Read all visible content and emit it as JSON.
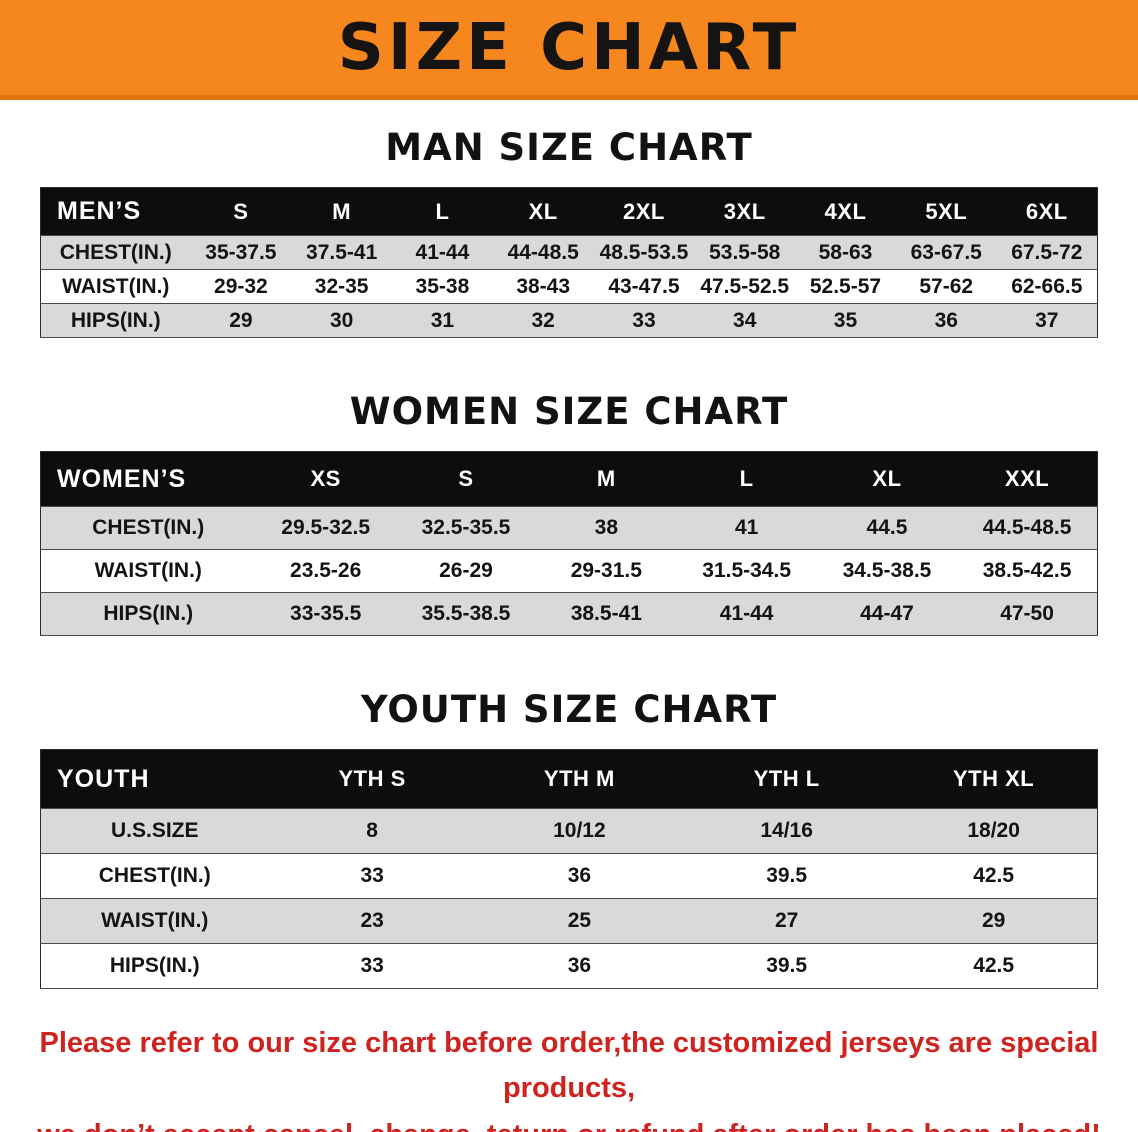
{
  "banner": {
    "title": "SIZE CHART",
    "bg_color": "#F6871F"
  },
  "tables": [
    {
      "id": "men",
      "heading": "MAN SIZE CHART",
      "header": [
        "MEN’S",
        "S",
        "M",
        "L",
        "XL",
        "2XL",
        "3XL",
        "4XL",
        "5XL",
        "6XL"
      ],
      "rows": [
        [
          "CHEST(IN.)",
          "35-37.5",
          "37.5-41",
          "41-44",
          "44-48.5",
          "48.5-53.5",
          "53.5-58",
          "58-63",
          "63-67.5",
          "67.5-72"
        ],
        [
          "WAIST(IN.)",
          "29-32",
          "32-35",
          "35-38",
          "38-43",
          "43-47.5",
          "47.5-52.5",
          "52.5-57",
          "57-62",
          "62-66.5"
        ],
        [
          "HIPS(IN.)",
          "29",
          "30",
          "31",
          "32",
          "33",
          "34",
          "35",
          "36",
          "37"
        ]
      ]
    },
    {
      "id": "women",
      "heading": "WOMEN SIZE CHART",
      "header": [
        "WOMEN’S",
        "XS",
        "S",
        "M",
        "L",
        "XL",
        "XXL"
      ],
      "rows": [
        [
          "CHEST(IN.)",
          "29.5-32.5",
          "32.5-35.5",
          "38",
          "41",
          "44.5",
          "44.5-48.5"
        ],
        [
          "WAIST(IN.)",
          "23.5-26",
          "26-29",
          "29-31.5",
          "31.5-34.5",
          "34.5-38.5",
          "38.5-42.5"
        ],
        [
          "HIPS(IN.)",
          "33-35.5",
          "35.5-38.5",
          "38.5-41",
          "41-44",
          "44-47",
          "47-50"
        ]
      ]
    },
    {
      "id": "youth",
      "heading": "YOUTH SIZE CHART",
      "header": [
        "YOUTH",
        "YTH S",
        "YTH M",
        "YTH L",
        "YTH XL"
      ],
      "rows": [
        [
          "U.S.SIZE",
          "8",
          "10/12",
          "14/16",
          "18/20"
        ],
        [
          "CHEST(IN.)",
          "33",
          "36",
          "39.5",
          "42.5"
        ],
        [
          "WAIST(IN.)",
          "23",
          "25",
          "27",
          "29"
        ],
        [
          "HIPS(IN.)",
          "33",
          "36",
          "39.5",
          "42.5"
        ]
      ]
    }
  ],
  "notice": {
    "color": "#CE2420",
    "line1": "Please refer to our size chart before order,the customized jerseys are special products,",
    "line2": "we don’t accept cancel, change, teturn or refund after order has been placed!"
  }
}
